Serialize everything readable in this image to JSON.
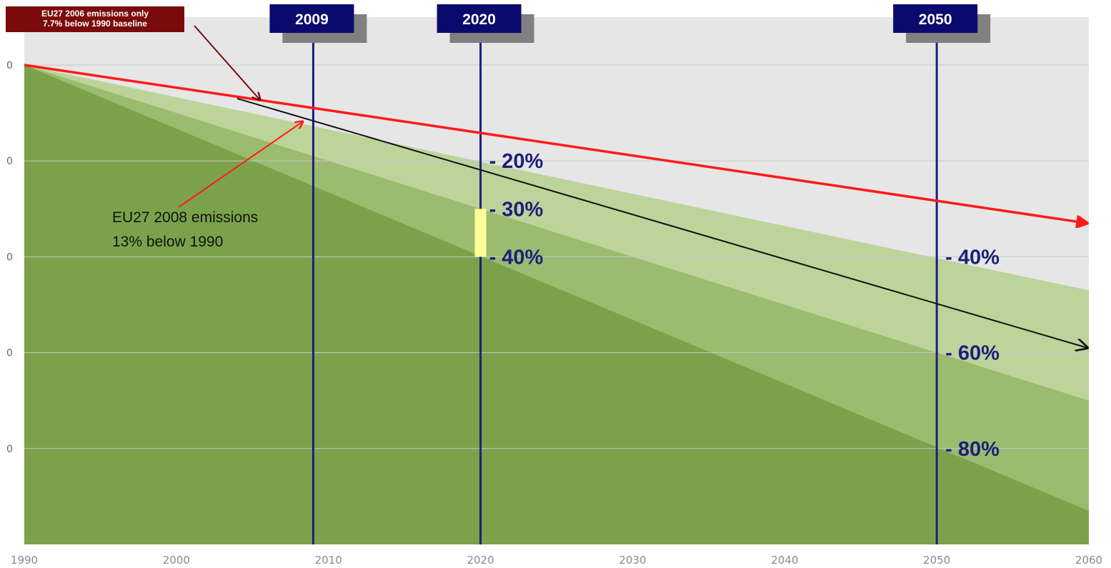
{
  "chart_data": {
    "type": "area",
    "x_ticks": [
      "1990",
      "2000",
      "2010",
      "2020",
      "2030",
      "2040",
      "2050",
      "2060"
    ],
    "y_ticks": [
      "0",
      "0",
      "0",
      "0",
      "0"
    ],
    "xlim": [
      1990,
      2060
    ],
    "ylim": [
      0,
      100
    ],
    "grid": "horizontal",
    "series": [
      {
        "x": [
          1990,
          2060
        ],
        "values": [
          100,
          53
        ],
        "color": "#bcd49a"
      },
      {
        "x": [
          1990,
          2060
        ],
        "values": [
          100,
          30
        ],
        "color": "#9bbb6e"
      },
      {
        "x": [
          1990,
          2060
        ],
        "values": [
          100,
          7
        ],
        "color": "#7ba24b"
      }
    ],
    "lines": [
      {
        "x": [
          1990,
          2060
        ],
        "values": [
          100,
          67
        ],
        "color": "#ff1a1a"
      },
      {
        "x": [
          2004,
          2060
        ],
        "values": [
          93,
          41
        ],
        "color": "#111111"
      }
    ],
    "year_markers": [
      {
        "year": 2009,
        "label": "2009"
      },
      {
        "year": 2020,
        "label": "2020"
      },
      {
        "year": 2050,
        "label": "2050"
      }
    ],
    "range_2020": [
      70,
      60
    ],
    "pct_labels": [
      {
        "text": "- 20%",
        "x": 2020,
        "y": 80
      },
      {
        "text": "- 30%",
        "x": 2020,
        "y": 70
      },
      {
        "text": "- 40%",
        "x": 2020,
        "y": 60
      },
      {
        "text": "- 40%",
        "x": 2050,
        "y": 60
      },
      {
        "text": "- 60%",
        "x": 2050,
        "y": 40
      },
      {
        "text": "- 80%",
        "x": 2050,
        "y": 20
      }
    ]
  },
  "annotations": {
    "note_2006_line1": "EU27 2006 emissions only",
    "note_2006_line2": "7.7% below 1990 baseline",
    "note_2008_line1": "EU27 2008 emissions",
    "note_2008_line2": "13% below 1990"
  },
  "colors": {
    "plot_background": "#e6e6e6",
    "marker_line": "#1c1f7a",
    "marker_box": "#0a0a6e",
    "marker_shadow": "#808080",
    "range_bar": "#ffff99",
    "pct_text": "#1c1f7a"
  }
}
